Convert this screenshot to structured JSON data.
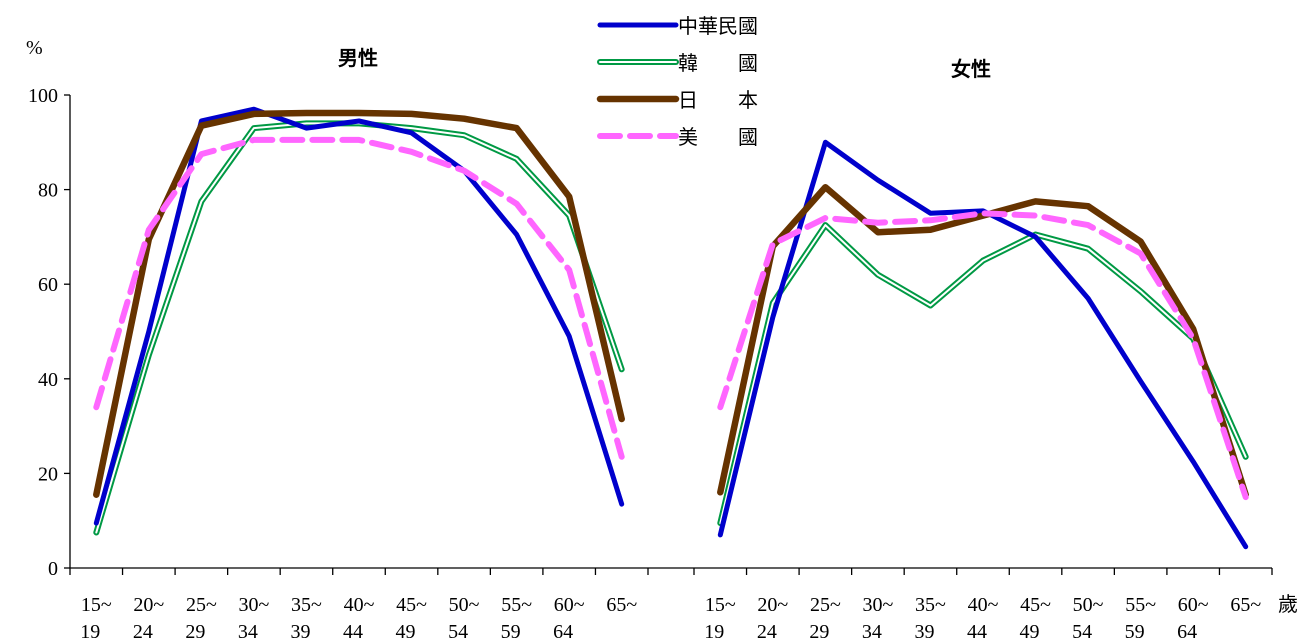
{
  "chart_data": {
    "type": "line",
    "y_unit": "%",
    "x_unit": "歲",
    "ylim": [
      0,
      100
    ],
    "y_ticks": [
      "0",
      "20",
      "40",
      "60",
      "80",
      "100"
    ],
    "categories": [
      [
        "15~",
        "19"
      ],
      [
        "20~",
        "24"
      ],
      [
        "25~",
        "29"
      ],
      [
        "30~",
        "34"
      ],
      [
        "35~",
        "39"
      ],
      [
        "40~",
        "44"
      ],
      [
        "45~",
        "49"
      ],
      [
        "50~",
        "54"
      ],
      [
        "55~",
        "59"
      ],
      [
        "60~",
        "64"
      ],
      [
        "65~",
        ""
      ]
    ],
    "legend": [
      {
        "key": "taiwan",
        "label": "中華民國",
        "color": "#0000cc",
        "style": "solid"
      },
      {
        "key": "korea",
        "label": "韓　　國",
        "color": "#009944",
        "style": "double"
      },
      {
        "key": "japan",
        "label": "日　　本",
        "color": "#663300",
        "style": "solid"
      },
      {
        "key": "usa",
        "label": "美　　國",
        "color": "#ff66ff",
        "style": "dashed"
      }
    ],
    "panels": [
      {
        "title": "男性",
        "series": {
          "taiwan": [
            9.5,
            50,
            94.5,
            97,
            93,
            94.5,
            92,
            84,
            70.5,
            49,
            13.5
          ],
          "korea": [
            7.5,
            45,
            77.5,
            93,
            94,
            94,
            93,
            91.5,
            86.5,
            74.5,
            42
          ],
          "japan": [
            15.5,
            69.5,
            93.5,
            96,
            96.2,
            96.2,
            96,
            95,
            93,
            78.5,
            31.5
          ],
          "usa": [
            34,
            71.5,
            87.5,
            90.5,
            90.5,
            90.5,
            88,
            84,
            77,
            63,
            23.5
          ]
        }
      },
      {
        "title": "女性",
        "series": {
          "taiwan": [
            7,
            53,
            90,
            82,
            75,
            75.5,
            70,
            57,
            39.5,
            22.5,
            4.5
          ],
          "korea": [
            9.5,
            56,
            72.5,
            62,
            55.5,
            65,
            70.5,
            67.5,
            58.5,
            48.5,
            23.5
          ],
          "japan": [
            16,
            68,
            80.5,
            71,
            71.5,
            74.5,
            77.5,
            76.5,
            69,
            50.5,
            15.5
          ],
          "usa": [
            34,
            68.5,
            74,
            73,
            73.5,
            75,
            74.5,
            72.5,
            66.5,
            48.5,
            15
          ]
        }
      }
    ]
  }
}
